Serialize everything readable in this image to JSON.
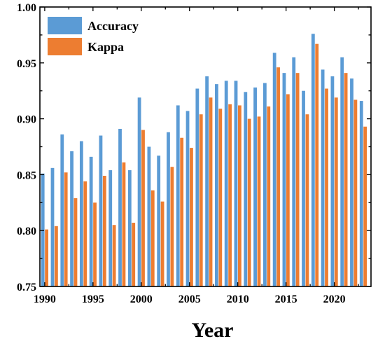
{
  "chart_data": {
    "type": "bar",
    "title": "",
    "xlabel": "Year",
    "ylabel": "",
    "xlim": [
      1989.5,
      2023.8
    ],
    "ylim": [
      0.75,
      1.0
    ],
    "grid": false,
    "legend_position": "top-left",
    "x_ticks": [
      "1990",
      "1995",
      "2000",
      "2005",
      "2010",
      "2015",
      "2020"
    ],
    "y_ticks": [
      "0.75",
      "0.80",
      "0.85",
      "0.90",
      "0.95",
      "1.00"
    ],
    "categories": [
      1990,
      1991,
      1992,
      1993,
      1994,
      1995,
      1996,
      1997,
      1998,
      1999,
      2000,
      2001,
      2002,
      2003,
      2004,
      2005,
      2006,
      2007,
      2008,
      2009,
      2010,
      2011,
      2012,
      2013,
      2014,
      2015,
      2016,
      2017,
      2018,
      2019,
      2020,
      2021,
      2022,
      2023
    ],
    "series": [
      {
        "name": "Accuracy",
        "color": "#5b9bd5",
        "values": [
          0.851,
          0.856,
          0.886,
          0.871,
          0.88,
          0.866,
          0.885,
          0.854,
          0.891,
          0.854,
          0.919,
          0.875,
          0.867,
          0.888,
          0.912,
          0.907,
          0.927,
          0.938,
          0.931,
          0.934,
          0.934,
          0.924,
          0.928,
          0.932,
          0.959,
          0.941,
          0.955,
          0.925,
          0.976,
          0.944,
          0.938,
          0.955,
          0.936,
          0.916
        ]
      },
      {
        "name": "Kappa",
        "color": "#ed7d31",
        "values": [
          0.801,
          0.804,
          0.852,
          0.829,
          0.844,
          0.825,
          0.849,
          0.805,
          0.861,
          0.807,
          0.89,
          0.836,
          0.826,
          0.857,
          0.883,
          0.874,
          0.904,
          0.919,
          0.909,
          0.913,
          0.912,
          0.9,
          0.902,
          0.911,
          0.946,
          0.922,
          0.941,
          0.904,
          0.967,
          0.927,
          0.919,
          0.941,
          0.917,
          0.893
        ]
      }
    ]
  }
}
